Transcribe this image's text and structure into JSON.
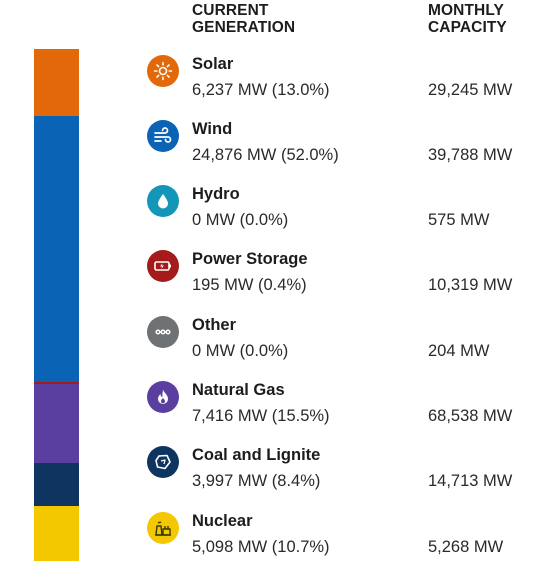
{
  "headers": {
    "generation": [
      "CURRENT",
      "GENERATION"
    ],
    "capacity": [
      "MONTHLY",
      "CAPACITY"
    ]
  },
  "sources": [
    {
      "name": "Solar",
      "generation": "6,237 MW (13.0%)",
      "capacity": "29,245 MW",
      "share": 13.0,
      "color": "#E2680A",
      "icon": "sun-icon"
    },
    {
      "name": "Wind",
      "generation": "24,876 MW (52.0%)",
      "capacity": "39,788 MW",
      "share": 52.0,
      "color": "#0B63B6",
      "icon": "wind-icon"
    },
    {
      "name": "Hydro",
      "generation": "0 MW (0.0%)",
      "capacity": "575 MW",
      "share": 0.0,
      "color": "#1496B8",
      "icon": "water-drop-icon"
    },
    {
      "name": "Power Storage",
      "generation": "195 MW (0.4%)",
      "capacity": "10,319 MW",
      "share": 0.4,
      "color": "#A51A1A",
      "icon": "battery-icon"
    },
    {
      "name": "Other",
      "generation": "0 MW (0.0%)",
      "capacity": "204 MW",
      "share": 0.0,
      "color": "#6E7275",
      "icon": "ellipsis-icon"
    },
    {
      "name": "Natural Gas",
      "generation": "7,416 MW (15.5%)",
      "capacity": "68,538 MW",
      "share": 15.5,
      "color": "#5A3FA0",
      "icon": "flame-icon"
    },
    {
      "name": "Coal and Lignite",
      "generation": "3,997 MW (8.4%)",
      "capacity": "14,713 MW",
      "share": 8.4,
      "color": "#0E3460",
      "icon": "coal-icon"
    },
    {
      "name": "Nuclear",
      "generation": "5,098 MW (10.7%)",
      "capacity": "5,268 MW",
      "share": 10.7,
      "color": "#F3C800",
      "icon": "nuclear-plant-icon"
    }
  ]
}
